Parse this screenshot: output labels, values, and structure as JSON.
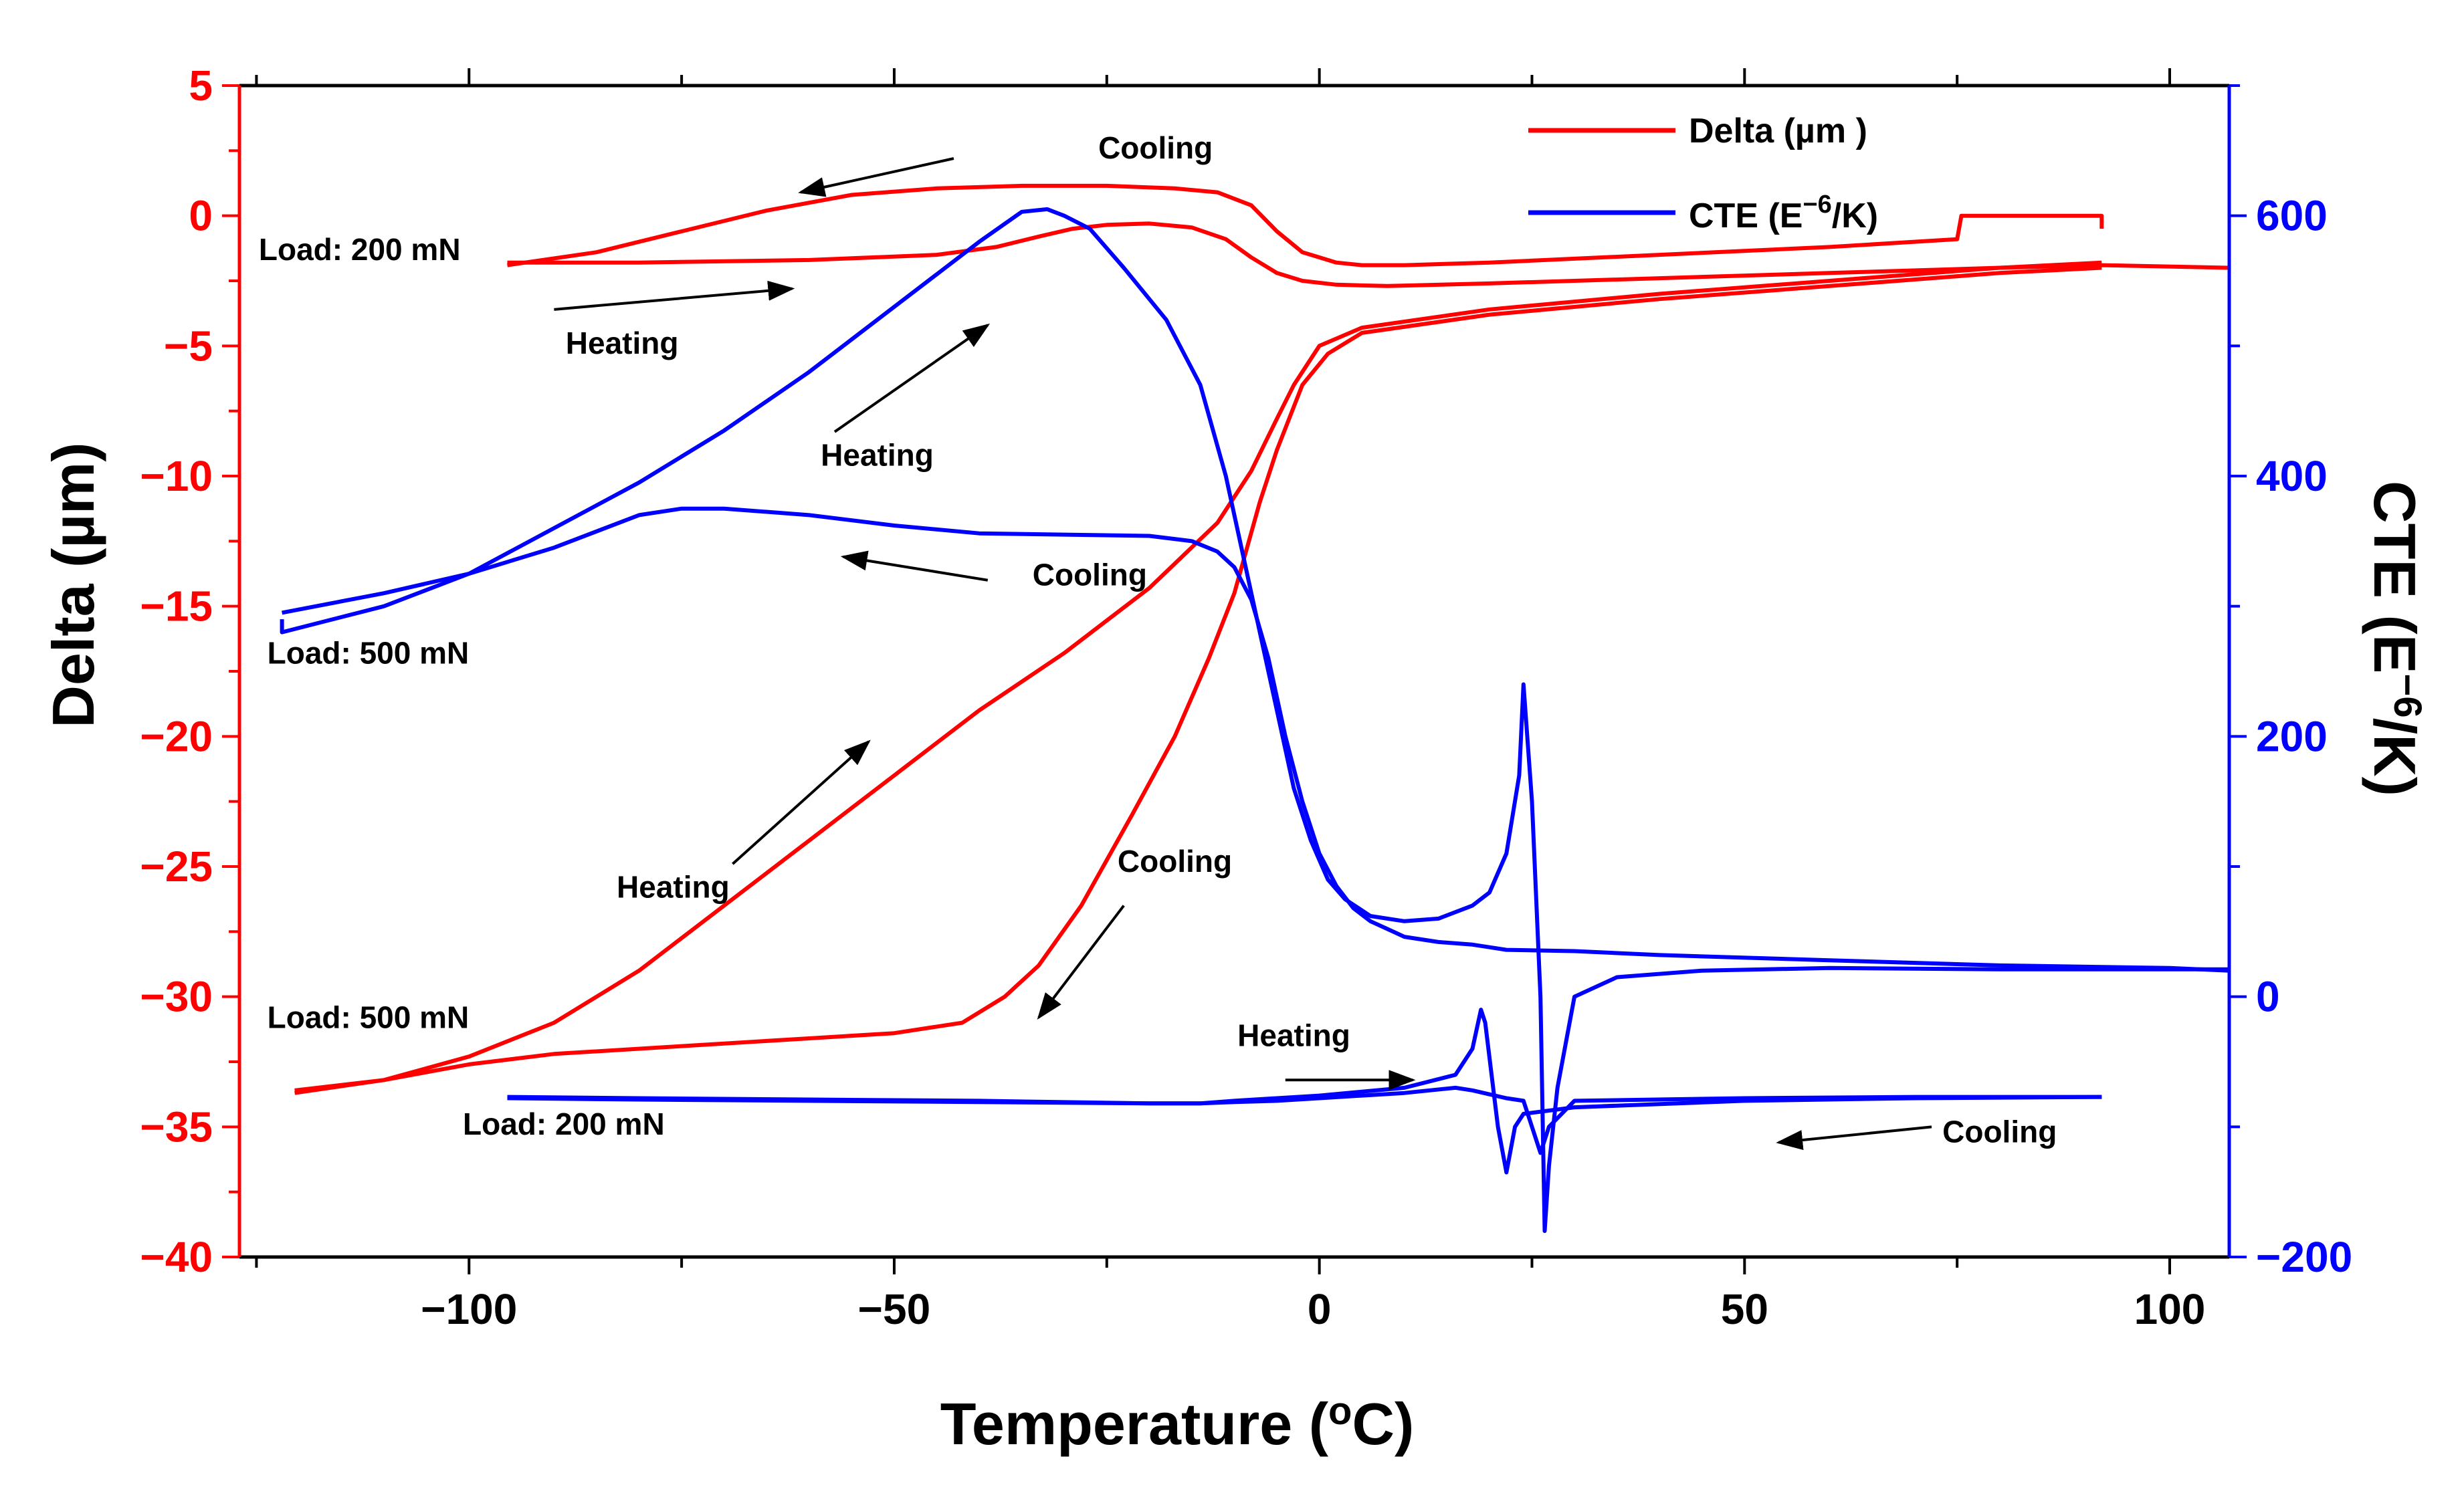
{
  "chart_data": {
    "type": "line",
    "title": "",
    "xlabel": "Temperature (",
    "xlabel_sup": "o",
    "xlabel_end": "C)",
    "ylabel_left": "Delta (µm)",
    "ylabel_right_pre": "CTE (E",
    "ylabel_right_sup": "−6",
    "ylabel_right_post": "/K)",
    "xlim": [
      -127,
      107
    ],
    "ylim_left": [
      -40,
      5
    ],
    "ylim_right": [
      -200,
      700
    ],
    "x_ticks": [
      -100,
      -50,
      0,
      50,
      100
    ],
    "x_tick_labels": [
      "−100",
      "−50",
      "0",
      "50",
      "100"
    ],
    "y_left_ticks": [
      5,
      0,
      -5,
      -10,
      -15,
      -20,
      -25,
      -30,
      -35,
      -40
    ],
    "y_left_tick_labels": [
      "5",
      "0",
      "−5",
      "−10",
      "−15",
      "−20",
      "−25",
      "−30",
      "−35",
      "−40"
    ],
    "y_right_ticks": [
      600,
      400,
      200,
      0,
      -200
    ],
    "y_right_tick_labels": [
      "600",
      "400",
      "200",
      "0",
      "−200"
    ],
    "colors": {
      "delta": "#ff0000",
      "cte": "#0000ff",
      "axis": "#000000"
    },
    "legend": {
      "placement": "top-right",
      "entries": [
        {
          "label": "Delta (µm )",
          "color": "#ff0000"
        },
        {
          "label_pre": "CTE (E",
          "label_sup": "−6",
          "label_post": "/K)",
          "color": "#0000ff"
        }
      ]
    },
    "series": [
      {
        "axis": "left",
        "color": "#ff0000",
        "x": [
          -95.5,
          -85,
          -75,
          -65,
          -55,
          -45,
          -35,
          -25,
          -17,
          -12,
          -8,
          -5,
          -2,
          2,
          5,
          10,
          20,
          40,
          60,
          75,
          75.5,
          80,
          92,
          92
        ],
        "y": [
          -1.9,
          -1.4,
          -0.6,
          0.2,
          0.8,
          1.05,
          1.15,
          1.15,
          1.05,
          0.9,
          0.4,
          -0.6,
          -1.4,
          -1.8,
          -1.9,
          -1.9,
          -1.8,
          -1.5,
          -1.2,
          -0.9,
          0,
          0,
          0,
          -0.5
        ]
      },
      {
        "axis": "left",
        "color": "#ff0000",
        "x": [
          -95.5,
          -80,
          -60,
          -45,
          -38,
          -33,
          -29,
          -25,
          -20,
          -15,
          -11,
          -8,
          -5,
          -2,
          2,
          8,
          20,
          40,
          60,
          80,
          92,
          107
        ],
        "y": [
          -1.8,
          -1.8,
          -1.7,
          -1.5,
          -1.2,
          -0.8,
          -0.5,
          -0.35,
          -0.3,
          -0.45,
          -0.9,
          -1.6,
          -2.2,
          -2.5,
          -2.65,
          -2.7,
          -2.6,
          -2.4,
          -2.2,
          -2.0,
          -1.9,
          -2.0
        ]
      },
      {
        "axis": "left",
        "color": "#ff0000",
        "x": [
          -120.5,
          -110,
          -100,
          -90,
          -80,
          -70,
          -60,
          -50,
          -40,
          -30,
          -20,
          -12,
          -8,
          -5,
          -3,
          0,
          5,
          20,
          40,
          60,
          80,
          92
        ],
        "y": [
          -33.7,
          -33.2,
          -32.3,
          -31.0,
          -29.0,
          -26.5,
          -24.0,
          -21.5,
          -19.0,
          -16.8,
          -14.3,
          -11.8,
          -9.8,
          -7.8,
          -6.5,
          -5.0,
          -4.3,
          -3.6,
          -3.0,
          -2.5,
          -2.0,
          -1.8
        ]
      },
      {
        "axis": "left",
        "color": "#ff0000",
        "x": [
          -120.5,
          -110,
          -100,
          -90,
          -75,
          -60,
          -50,
          -42,
          -37,
          -33,
          -28,
          -22,
          -17,
          -13,
          -10,
          -7,
          -5,
          -2,
          1,
          5,
          20,
          40,
          60,
          80,
          92
        ],
        "y": [
          -33.6,
          -33.2,
          -32.6,
          -32.2,
          -31.9,
          -31.6,
          -31.4,
          -31.0,
          -30.0,
          -28.8,
          -26.5,
          -23.0,
          -20.0,
          -17.0,
          -14.5,
          -11.0,
          -9.0,
          -6.5,
          -5.3,
          -4.5,
          -3.8,
          -3.2,
          -2.7,
          -2.2,
          -2.0
        ]
      },
      {
        "axis": "right",
        "color": "#0000ff",
        "x": [
          -122,
          -122,
          -110,
          -100,
          -90,
          -80,
          -70,
          -60,
          -50,
          -40,
          -35,
          -32,
          -30,
          -27,
          -23,
          -18,
          -14,
          -11,
          -9,
          -7,
          -5,
          -3,
          -1,
          1,
          3,
          6,
          10,
          14,
          18,
          20,
          22,
          23.5,
          24,
          25,
          26,
          26.5,
          27,
          28,
          30,
          35,
          45,
          60,
          80,
          100,
          107
        ],
        "y": [
          290,
          280,
          300,
          325,
          360,
          395,
          435,
          480,
          530,
          580,
          603,
          605,
          600,
          590,
          560,
          520,
          470,
          400,
          340,
          280,
          220,
          160,
          120,
          90,
          75,
          62,
          58,
          60,
          70,
          80,
          110,
          170,
          240,
          150,
          0,
          -180,
          -130,
          -70,
          0,
          15,
          20,
          22,
          21,
          21,
          21
        ]
      },
      {
        "axis": "right",
        "color": "#0000ff",
        "x": [
          -122,
          -110,
          -100,
          -90,
          -80,
          -75,
          -70,
          -60,
          -50,
          -40,
          -30,
          -20,
          -15,
          -12,
          -10,
          -8,
          -6,
          -4,
          -2,
          0,
          2,
          4,
          6,
          8,
          10,
          14,
          18,
          20,
          22,
          30,
          40,
          60,
          80,
          100,
          107
        ],
        "y": [
          295,
          310,
          325,
          345,
          370,
          375,
          375,
          370,
          362,
          356,
          355,
          354,
          350,
          342,
          330,
          305,
          260,
          200,
          150,
          110,
          85,
          68,
          58,
          52,
          46,
          42,
          40,
          38,
          36,
          35,
          32,
          28,
          24,
          22,
          20
        ]
      },
      {
        "axis": "right",
        "color": "#0000ff",
        "x": [
          -95.5,
          -80,
          -60,
          -40,
          -20,
          -14,
          -10,
          -5,
          0,
          10,
          16,
          18,
          19,
          19.5,
          21,
          22,
          23,
          24,
          30,
          50,
          70,
          92
        ],
        "y": [
          -77,
          -78,
          -79,
          -80,
          -82,
          -82,
          -80,
          -78,
          -76,
          -70,
          -60,
          -40,
          -10,
          -20,
          -100,
          -135,
          -100,
          -90,
          -85,
          -80,
          -78,
          -77
        ]
      },
      {
        "axis": "right",
        "color": "#0000ff",
        "x": [
          -95.5,
          -80,
          -60,
          -40,
          -20,
          -14,
          -10,
          -5,
          0,
          10,
          16,
          18,
          20,
          22,
          24,
          26,
          27,
          30,
          50,
          70,
          92
        ],
        "y": [
          -78,
          -79,
          -80,
          -81,
          -82,
          -82,
          -81,
          -80,
          -78,
          -74,
          -70,
          -72,
          -75,
          -78,
          -80,
          -120,
          -100,
          -80,
          -78,
          -77,
          -77
        ]
      }
    ],
    "annotations": [
      {
        "text": "Cooling",
        "x": -26,
        "y_left": 2.2,
        "anchor": "start"
      },
      {
        "text": "Load: 200 mN",
        "x": -101,
        "y_left": -1.7,
        "anchor": "end"
      },
      {
        "text": "Heating",
        "x": -82,
        "y_left": -5.3,
        "anchor": "middle"
      },
      {
        "text": "Heating",
        "x": -52,
        "y_left": -9.6,
        "anchor": "middle"
      },
      {
        "text": "Cooling",
        "x": -27,
        "y_left": -14.2,
        "anchor": "middle"
      },
      {
        "text": "Load: 500 mN",
        "x": -100,
        "y_left": -17.2,
        "anchor": "end"
      },
      {
        "text": "Heating",
        "x": -76,
        "y_left": -26.2,
        "anchor": "middle"
      },
      {
        "text": "Cooling",
        "x": -17,
        "y_left": -25.2,
        "anchor": "middle"
      },
      {
        "text": "Load: 500 mN",
        "x": -100,
        "y_left": -31.2,
        "anchor": "end"
      },
      {
        "text": "Heating",
        "x": -3,
        "y_left": -31.9,
        "anchor": "middle"
      },
      {
        "text": "Load: 200 mN",
        "x": -77,
        "y_left": -35.3,
        "anchor": "end"
      },
      {
        "text": "Cooling",
        "x": 80,
        "y_left": -35.6,
        "anchor": "middle"
      }
    ],
    "arrows": [
      {
        "x1": -43,
        "y1": 2.2,
        "x2": -61,
        "y2": 0.9
      },
      {
        "x1": -90,
        "y1": -3.6,
        "x2": -62,
        "y2": -2.8
      },
      {
        "x1": -57,
        "y1": -8.3,
        "x2": -39,
        "y2": -4.2
      },
      {
        "x1": -39,
        "y1": -14.0,
        "x2": -56,
        "y2": -13.1
      },
      {
        "x1": -69,
        "y1": -24.9,
        "x2": -53,
        "y2": -20.2
      },
      {
        "x1": -23,
        "y1": -26.5,
        "x2": -33,
        "y2": -30.8
      },
      {
        "x1": -4,
        "y1": -33.2,
        "x2": 11,
        "y2": -33.2
      },
      {
        "x1": 72,
        "y1": -35.0,
        "x2": 54,
        "y2": -35.6
      }
    ]
  }
}
